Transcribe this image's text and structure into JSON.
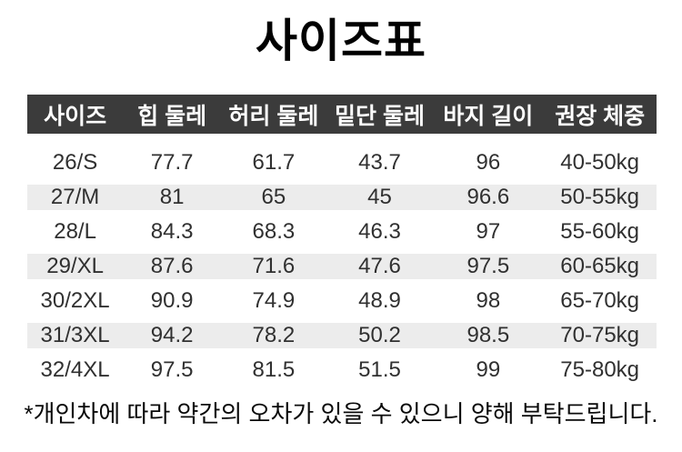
{
  "title": "사이즈표",
  "table": {
    "headers": [
      "사이즈",
      "힙 둘레",
      "허리 둘레",
      "밑단 둘레",
      "바지 길이",
      "권장 체중"
    ],
    "rows": [
      [
        "26/S",
        "77.7",
        "61.7",
        "43.7",
        "96",
        "40-50kg"
      ],
      [
        "27/M",
        "81",
        "65",
        "45",
        "96.6",
        "50-55kg"
      ],
      [
        "28/L",
        "84.3",
        "68.3",
        "46.3",
        "97",
        "55-60kg"
      ],
      [
        "29/XL",
        "87.6",
        "71.6",
        "47.6",
        "97.5",
        "60-65kg"
      ],
      [
        "30/2XL",
        "90.9",
        "74.9",
        "48.9",
        "98",
        "65-70kg"
      ],
      [
        "31/3XL",
        "94.2",
        "78.2",
        "50.2",
        "98.5",
        "70-75kg"
      ],
      [
        "32/4XL",
        "97.5",
        "81.5",
        "51.5",
        "99",
        "75-80kg"
      ]
    ]
  },
  "footnote": "*개인차에 따라 약간의 오차가 있을 수 있으니 양해 부탁드립니다.",
  "colors": {
    "header_bg": "#3b3b3b",
    "header_text": "#ffffff",
    "stripe_bg": "#ececec",
    "body_text": "#303030",
    "title_text": "#000000"
  }
}
